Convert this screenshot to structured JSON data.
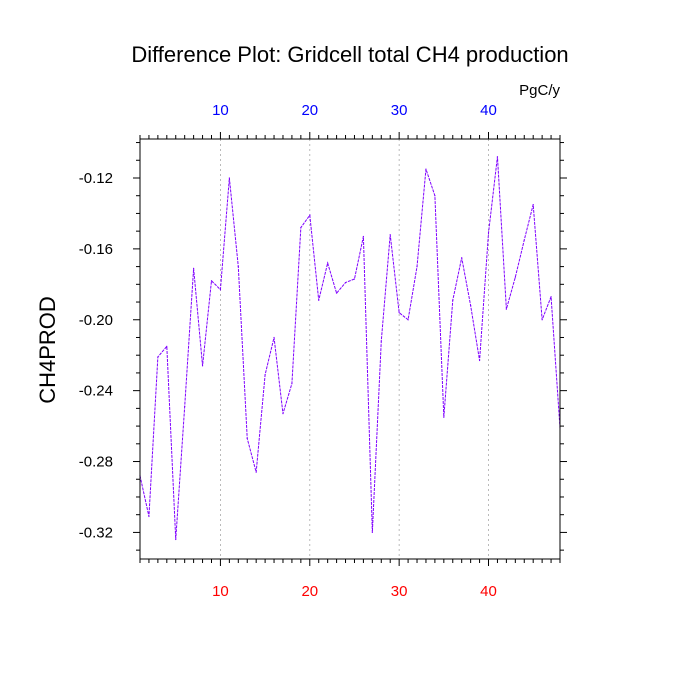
{
  "chart_data": {
    "type": "line",
    "title": "Difference Plot: Gridcell total CH4 production",
    "units": "PgC/y",
    "ylabel": "CH4PROD",
    "xlabel": "",
    "xlim": [
      1,
      48
    ],
    "ylim": [
      -0.335,
      -0.098
    ],
    "x_ticks": [
      10,
      20,
      30,
      40
    ],
    "x_tick_labels": [
      "10",
      "20",
      "30",
      "40"
    ],
    "y_ticks": [
      -0.12,
      -0.16,
      -0.2,
      -0.24,
      -0.28,
      -0.32
    ],
    "y_tick_labels": [
      "-0.12",
      "-0.16",
      "-0.20",
      "-0.24",
      "-0.28",
      "-0.32"
    ],
    "x_grid": true,
    "y_grid": false,
    "series": [
      {
        "x": [
          1,
          2,
          3,
          4,
          5,
          6,
          7,
          8,
          9,
          10,
          11,
          12,
          13,
          14,
          15,
          16,
          17,
          18,
          19,
          20,
          21,
          22,
          23,
          24,
          25,
          26,
          27,
          28,
          29,
          30,
          31,
          32,
          33,
          34,
          35,
          36,
          37,
          38,
          39,
          40,
          41,
          42,
          43,
          44,
          45,
          46,
          47,
          48
        ],
        "values": [
          -0.288,
          -0.311,
          -0.221,
          -0.215,
          -0.324,
          -0.249,
          -0.171,
          -0.226,
          -0.178,
          -0.183,
          -0.12,
          -0.17,
          -0.267,
          -0.286,
          -0.231,
          -0.21,
          -0.253,
          -0.236,
          -0.148,
          -0.141,
          -0.189,
          -0.168,
          -0.185,
          -0.179,
          -0.177,
          -0.153,
          -0.32,
          -0.212,
          -0.152,
          -0.196,
          -0.2,
          -0.17,
          -0.115,
          -0.13,
          -0.255,
          -0.189,
          -0.165,
          -0.192,
          -0.223,
          -0.151,
          -0.108,
          -0.194,
          -0.176,
          -0.155,
          -0.135,
          -0.2,
          -0.187,
          -0.261
        ]
      }
    ],
    "colors": {
      "line": "#7f00ff",
      "top_ticks": "#0000ff",
      "bottom_ticks": "#ff0000",
      "grid": "#aaaaaa"
    }
  }
}
